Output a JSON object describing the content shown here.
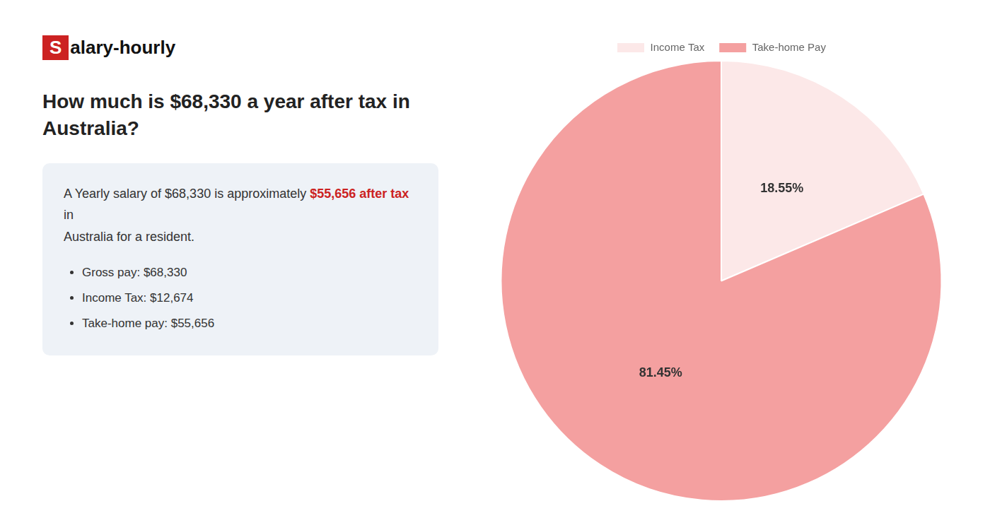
{
  "chart_data": {
    "type": "pie",
    "title": "How much is $68,330 a year after tax in\nAustralia?",
    "categories": [
      "Income Tax",
      "Take-home Pay"
    ],
    "values": [
      18.55,
      81.45
    ],
    "value_labels": [
      "18.55%",
      "81.45%"
    ],
    "colors": [
      "#fce8e8",
      "#f4a0a0"
    ],
    "data_labels": true,
    "legend": "top",
    "annotations": [
      {
        "text": "S",
        "color": "#cc2222"
      },
      {
        "text": "alary-hourly"
      },
      {
        "text": "A Yearly salary of $68,330 is approximately "
      },
      {
        "text": "$55,656 after tax",
        "color": "#cc2222"
      },
      {
        "text": " in"
      },
      {
        "text": "Australia for a resident."
      },
      {
        "text": "Gross pay: $68,330"
      },
      {
        "text": "Income Tax: $12,674"
      },
      {
        "text": "Take-home pay: $55,656"
      }
    ]
  }
}
